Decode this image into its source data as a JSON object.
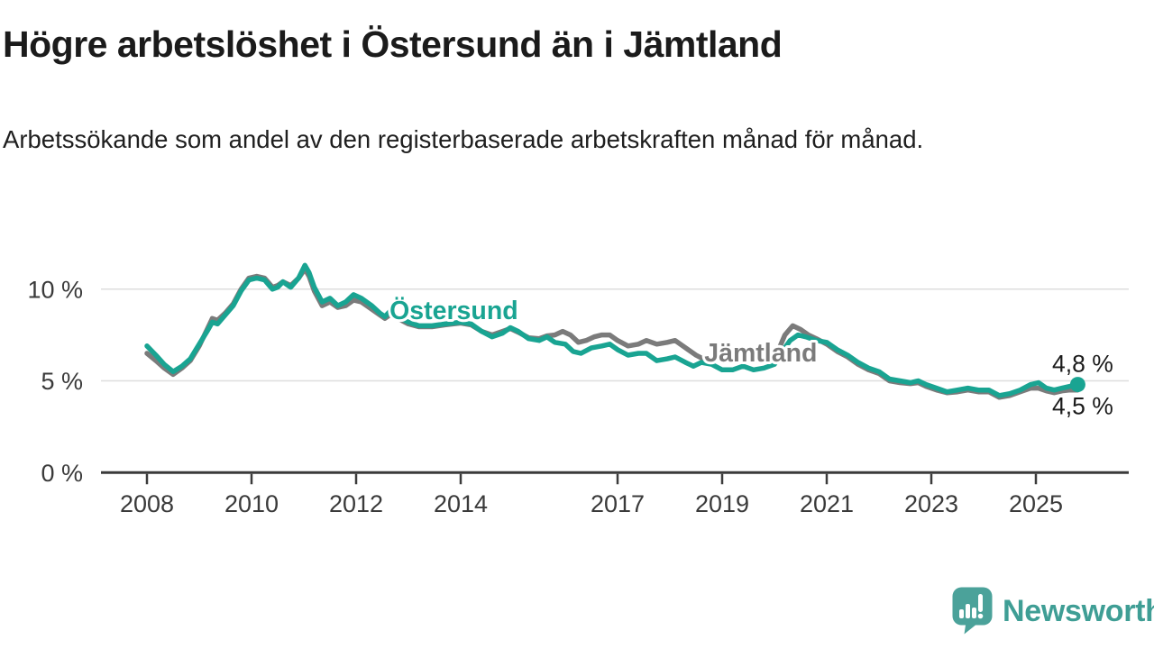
{
  "header": {
    "title": "Högre arbetslöshet i Östersund än i Jämtland",
    "subtitle": "Arbetssökande som andel av den registerbaserade arbetskraften månad för månad."
  },
  "chart_data": {
    "type": "line",
    "title": "Högre arbetslöshet i Östersund än i Jämtland",
    "subtitle": "Arbetssökande som andel av den registerbaserade arbetskraften månad för månad.",
    "unit": "%",
    "xlim": [
      2007.1,
      2026.8
    ],
    "ylim": [
      0,
      11.6
    ],
    "grid": "horizontal",
    "x_ticks": [
      2008,
      2010,
      2012,
      2014,
      2017,
      2019,
      2021,
      2023,
      2025
    ],
    "x_tick_labels": [
      "2008",
      "2010",
      "2012",
      "2014",
      "2017",
      "2019",
      "2021",
      "2023",
      "2025"
    ],
    "y_ticks": [
      0,
      5,
      10
    ],
    "y_tick_labels": [
      "0 %",
      "5 %",
      "10 %"
    ],
    "colors": {
      "ostersund": "#19a492",
      "jamtland": "#7b7b7b",
      "axis": "#3b3b3b",
      "gridline": "#dedede"
    },
    "series": [
      {
        "name": "Jämtland",
        "color": "#7b7b7b",
        "end_label": "4,5 %",
        "end_dot": false,
        "label_anchor": {
          "x": 2018.66,
          "y": 6.55
        },
        "points": [
          [
            2008.0,
            6.5
          ],
          [
            2008.17,
            6.1
          ],
          [
            2008.33,
            5.7
          ],
          [
            2008.5,
            5.35
          ],
          [
            2008.67,
            5.7
          ],
          [
            2008.83,
            6.1
          ],
          [
            2009.0,
            6.9
          ],
          [
            2009.15,
            7.8
          ],
          [
            2009.25,
            8.4
          ],
          [
            2009.35,
            8.3
          ],
          [
            2009.5,
            8.7
          ],
          [
            2009.65,
            9.2
          ],
          [
            2009.8,
            10.0
          ],
          [
            2009.95,
            10.6
          ],
          [
            2010.1,
            10.7
          ],
          [
            2010.25,
            10.6
          ],
          [
            2010.4,
            10.1
          ],
          [
            2010.5,
            10.2
          ],
          [
            2010.6,
            10.4
          ],
          [
            2010.75,
            10.2
          ],
          [
            2010.9,
            10.6
          ],
          [
            2011.02,
            11.1
          ],
          [
            2011.1,
            10.7
          ],
          [
            2011.2,
            9.9
          ],
          [
            2011.35,
            9.1
          ],
          [
            2011.5,
            9.3
          ],
          [
            2011.65,
            9.0
          ],
          [
            2011.8,
            9.1
          ],
          [
            2011.95,
            9.4
          ],
          [
            2012.1,
            9.3
          ],
          [
            2012.3,
            8.9
          ],
          [
            2012.45,
            8.6
          ],
          [
            2012.55,
            8.4
          ],
          [
            2012.65,
            8.6
          ],
          [
            2012.8,
            8.4
          ],
          [
            2013.0,
            8.1
          ],
          [
            2013.2,
            7.95
          ],
          [
            2013.45,
            7.95
          ],
          [
            2013.7,
            8.05
          ],
          [
            2014.0,
            8.15
          ],
          [
            2014.2,
            8.05
          ],
          [
            2014.4,
            7.7
          ],
          [
            2014.6,
            7.5
          ],
          [
            2014.8,
            7.7
          ],
          [
            2014.95,
            7.85
          ],
          [
            2015.1,
            7.65
          ],
          [
            2015.3,
            7.35
          ],
          [
            2015.5,
            7.3
          ],
          [
            2015.65,
            7.45
          ],
          [
            2015.8,
            7.5
          ],
          [
            2015.95,
            7.7
          ],
          [
            2016.1,
            7.5
          ],
          [
            2016.25,
            7.1
          ],
          [
            2016.4,
            7.2
          ],
          [
            2016.55,
            7.4
          ],
          [
            2016.7,
            7.5
          ],
          [
            2016.85,
            7.5
          ],
          [
            2017.0,
            7.2
          ],
          [
            2017.2,
            6.9
          ],
          [
            2017.4,
            7.0
          ],
          [
            2017.55,
            7.2
          ],
          [
            2017.75,
            7.0
          ],
          [
            2017.95,
            7.1
          ],
          [
            2018.1,
            7.2
          ],
          [
            2018.3,
            6.8
          ],
          [
            2018.5,
            6.4
          ],
          [
            2018.7,
            6.1
          ],
          [
            2018.9,
            6.2
          ],
          [
            2019.1,
            6.3
          ],
          [
            2019.3,
            6.2
          ],
          [
            2019.5,
            6.3
          ],
          [
            2019.7,
            6.1
          ],
          [
            2019.9,
            6.2
          ],
          [
            2020.05,
            6.5
          ],
          [
            2020.2,
            7.5
          ],
          [
            2020.35,
            8.0
          ],
          [
            2020.5,
            7.8
          ],
          [
            2020.65,
            7.5
          ],
          [
            2020.8,
            7.3
          ],
          [
            2021.0,
            7.0
          ],
          [
            2021.2,
            6.6
          ],
          [
            2021.4,
            6.3
          ],
          [
            2021.6,
            5.9
          ],
          [
            2021.8,
            5.6
          ],
          [
            2022.0,
            5.4
          ],
          [
            2022.2,
            5.0
          ],
          [
            2022.4,
            4.9
          ],
          [
            2022.6,
            4.85
          ],
          [
            2022.75,
            4.9
          ],
          [
            2022.9,
            4.7
          ],
          [
            2023.1,
            4.5
          ],
          [
            2023.3,
            4.35
          ],
          [
            2023.5,
            4.4
          ],
          [
            2023.7,
            4.5
          ],
          [
            2023.9,
            4.4
          ],
          [
            2024.1,
            4.4
          ],
          [
            2024.3,
            4.1
          ],
          [
            2024.5,
            4.2
          ],
          [
            2024.7,
            4.4
          ],
          [
            2024.9,
            4.6
          ],
          [
            2025.05,
            4.6
          ],
          [
            2025.2,
            4.45
          ],
          [
            2025.35,
            4.35
          ],
          [
            2025.5,
            4.45
          ],
          [
            2025.65,
            4.5
          ],
          [
            2025.8,
            4.5
          ]
        ]
      },
      {
        "name": "Östersund",
        "color": "#19a492",
        "end_label": "4,8 %",
        "end_dot": true,
        "label_anchor": {
          "x": 2012.64,
          "y": 8.85
        },
        "points": [
          [
            2008.0,
            6.9
          ],
          [
            2008.17,
            6.4
          ],
          [
            2008.33,
            5.9
          ],
          [
            2008.5,
            5.5
          ],
          [
            2008.67,
            5.8
          ],
          [
            2008.83,
            6.2
          ],
          [
            2009.0,
            7.0
          ],
          [
            2009.15,
            7.7
          ],
          [
            2009.25,
            8.2
          ],
          [
            2009.35,
            8.1
          ],
          [
            2009.5,
            8.6
          ],
          [
            2009.65,
            9.1
          ],
          [
            2009.8,
            9.9
          ],
          [
            2009.95,
            10.5
          ],
          [
            2010.1,
            10.6
          ],
          [
            2010.25,
            10.5
          ],
          [
            2010.4,
            10.0
          ],
          [
            2010.5,
            10.1
          ],
          [
            2010.6,
            10.4
          ],
          [
            2010.75,
            10.1
          ],
          [
            2010.9,
            10.6
          ],
          [
            2011.02,
            11.3
          ],
          [
            2011.1,
            10.9
          ],
          [
            2011.2,
            10.1
          ],
          [
            2011.35,
            9.3
          ],
          [
            2011.5,
            9.5
          ],
          [
            2011.65,
            9.1
          ],
          [
            2011.8,
            9.3
          ],
          [
            2011.95,
            9.7
          ],
          [
            2012.1,
            9.5
          ],
          [
            2012.3,
            9.1
          ],
          [
            2012.45,
            8.7
          ],
          [
            2012.55,
            8.5
          ],
          [
            2012.65,
            8.8
          ],
          [
            2012.8,
            8.5
          ],
          [
            2013.0,
            8.2
          ],
          [
            2013.2,
            8.0
          ],
          [
            2013.45,
            8.0
          ],
          [
            2013.7,
            8.1
          ],
          [
            2014.0,
            8.2
          ],
          [
            2014.2,
            8.1
          ],
          [
            2014.4,
            7.7
          ],
          [
            2014.6,
            7.4
          ],
          [
            2014.8,
            7.6
          ],
          [
            2014.95,
            7.9
          ],
          [
            2015.1,
            7.7
          ],
          [
            2015.3,
            7.3
          ],
          [
            2015.5,
            7.2
          ],
          [
            2015.65,
            7.4
          ],
          [
            2015.8,
            7.1
          ],
          [
            2016.0,
            7.0
          ],
          [
            2016.15,
            6.6
          ],
          [
            2016.3,
            6.5
          ],
          [
            2016.5,
            6.8
          ],
          [
            2016.7,
            6.9
          ],
          [
            2016.85,
            7.0
          ],
          [
            2017.0,
            6.7
          ],
          [
            2017.2,
            6.4
          ],
          [
            2017.4,
            6.5
          ],
          [
            2017.55,
            6.5
          ],
          [
            2017.75,
            6.1
          ],
          [
            2017.95,
            6.2
          ],
          [
            2018.1,
            6.3
          ],
          [
            2018.3,
            6.0
          ],
          [
            2018.45,
            5.8
          ],
          [
            2018.6,
            6.0
          ],
          [
            2018.8,
            5.9
          ],
          [
            2019.0,
            5.6
          ],
          [
            2019.2,
            5.6
          ],
          [
            2019.4,
            5.8
          ],
          [
            2019.6,
            5.6
          ],
          [
            2019.8,
            5.7
          ],
          [
            2020.0,
            5.9
          ],
          [
            2020.15,
            6.6
          ],
          [
            2020.3,
            7.2
          ],
          [
            2020.45,
            7.5
          ],
          [
            2020.6,
            7.4
          ],
          [
            2020.8,
            7.2
          ],
          [
            2021.0,
            7.1
          ],
          [
            2021.2,
            6.7
          ],
          [
            2021.4,
            6.4
          ],
          [
            2021.6,
            6.0
          ],
          [
            2021.8,
            5.7
          ],
          [
            2022.0,
            5.5
          ],
          [
            2022.2,
            5.1
          ],
          [
            2022.4,
            5.0
          ],
          [
            2022.6,
            4.9
          ],
          [
            2022.75,
            5.0
          ],
          [
            2022.9,
            4.8
          ],
          [
            2023.1,
            4.6
          ],
          [
            2023.3,
            4.4
          ],
          [
            2023.5,
            4.5
          ],
          [
            2023.7,
            4.6
          ],
          [
            2023.9,
            4.5
          ],
          [
            2024.1,
            4.5
          ],
          [
            2024.3,
            4.2
          ],
          [
            2024.5,
            4.3
          ],
          [
            2024.7,
            4.5
          ],
          [
            2024.9,
            4.8
          ],
          [
            2025.05,
            4.9
          ],
          [
            2025.2,
            4.6
          ],
          [
            2025.35,
            4.5
          ],
          [
            2025.5,
            4.6
          ],
          [
            2025.65,
            4.7
          ],
          [
            2025.8,
            4.8
          ]
        ]
      }
    ]
  },
  "footer": {
    "brand": "Newsworthy"
  }
}
